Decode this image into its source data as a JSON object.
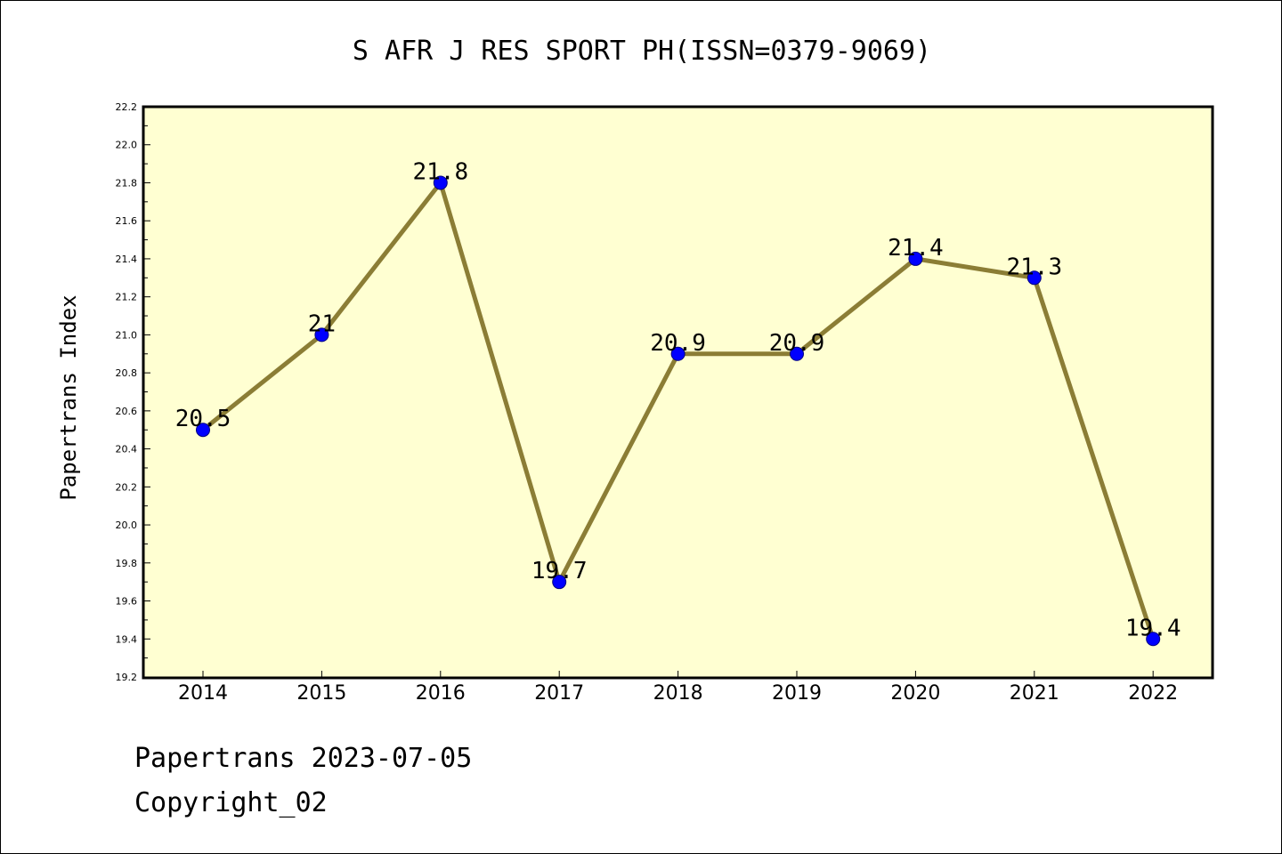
{
  "chart_data": {
    "type": "line",
    "title": "S AFR J RES SPORT PH(ISSN=0379-9069)",
    "xlabel": "",
    "ylabel": "Papertrans Index",
    "categories": [
      "2014",
      "2015",
      "2016",
      "2017",
      "2018",
      "2019",
      "2020",
      "2021",
      "2022"
    ],
    "series": [
      {
        "values": [
          20.5,
          21.0,
          21.8,
          19.7,
          20.9,
          20.9,
          21.4,
          21.3,
          19.4
        ],
        "labels": [
          "20.5",
          "21",
          "21.8",
          "19.7",
          "20.9",
          "20.9",
          "21.4",
          "21.3",
          "19.4"
        ]
      }
    ],
    "ylim": [
      19.2,
      22.2
    ],
    "yticks": [
      "19.2",
      "19.4",
      "19.6",
      "19.8",
      "20.0",
      "20.2",
      "20.4",
      "20.6",
      "20.8",
      "21.0",
      "21.2",
      "21.4",
      "21.6",
      "21.8",
      "22.0",
      "22.2"
    ],
    "grid": false,
    "colors": {
      "plot_background": "#ffffd2",
      "line": "#8b7d35",
      "marker": "#0000ff",
      "axes": "#000000"
    }
  },
  "footer": {
    "line1": "Papertrans 2023-07-05",
    "line2": "Copyright_02"
  }
}
